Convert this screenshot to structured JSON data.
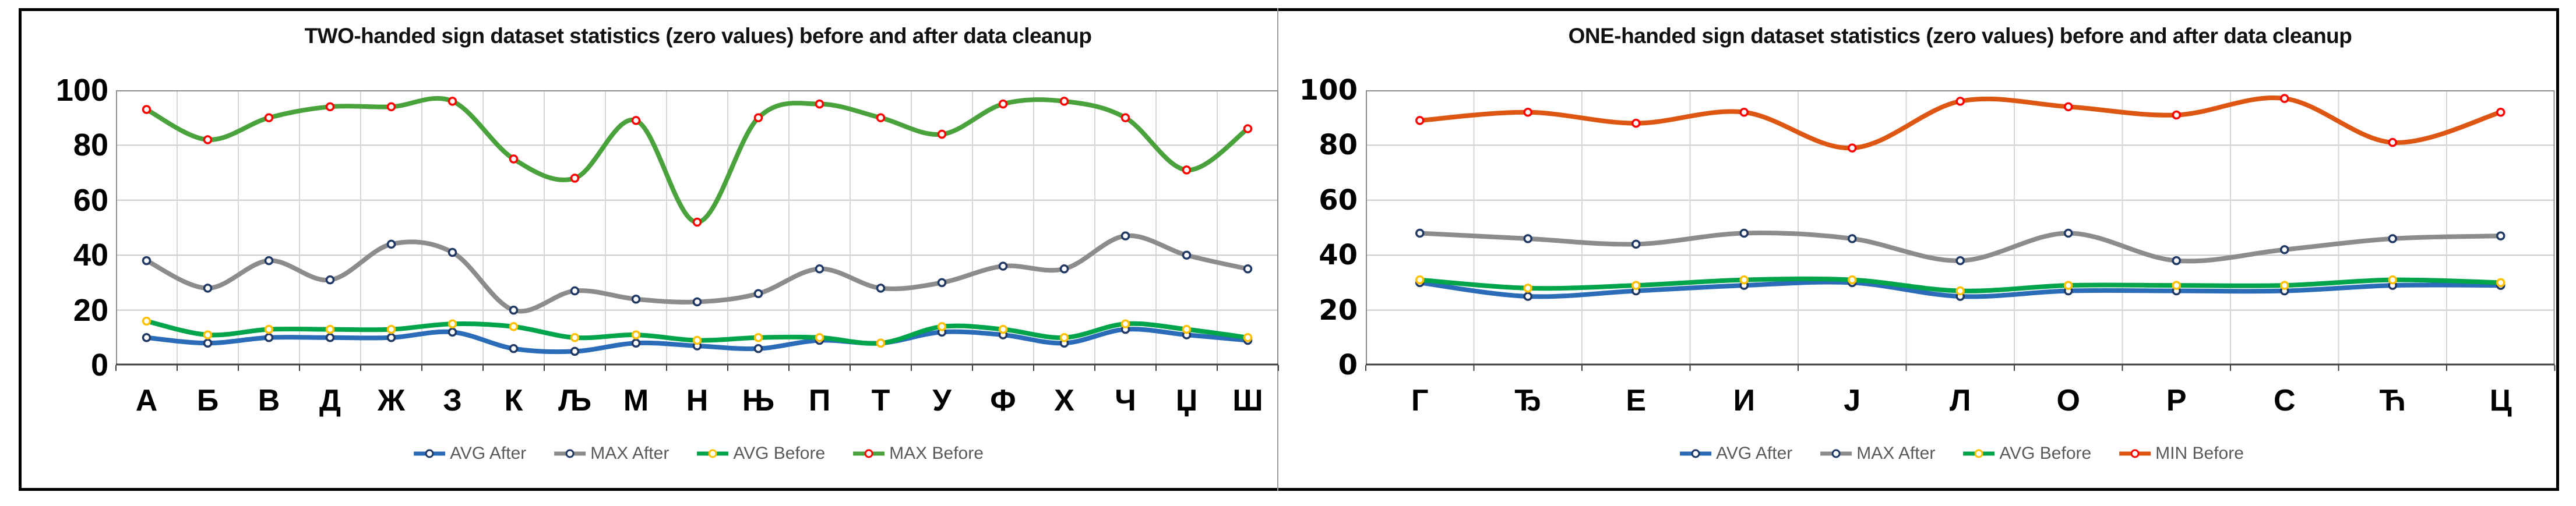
{
  "page": {
    "background": "#ffffff",
    "outer_border_color": "#000000",
    "divider_color": "#9a9a9a",
    "gridline_color": "#c9c9c9",
    "vertical_gridline_color": "#d6d6d6",
    "plot_border_color": "#8c8c8c",
    "axis_line_color": "#3f3f3f",
    "legend_text_color": "#595959"
  },
  "chart_data": [
    {
      "type": "line",
      "id": "two-handed",
      "title": "TWO-handed sign dataset statistics (zero values) before and after data cleanup",
      "xlabel": "",
      "ylabel": "",
      "ylim": [
        0,
        100
      ],
      "y_ticks": [
        100,
        80,
        60,
        40,
        20,
        0
      ],
      "grid": true,
      "legend_position": "bottom",
      "smooth_lines": true,
      "categories": [
        "А",
        "Б",
        "В",
        "Д",
        "Ж",
        "З",
        "К",
        "Љ",
        "М",
        "Н",
        "Њ",
        "П",
        "Т",
        "У",
        "Ф",
        "Х",
        "Ч",
        "Џ",
        "Ш"
      ],
      "series": [
        {
          "name": "AVG After",
          "color": "#2b6cb8",
          "marker_color": "#1f3864",
          "values": [
            10,
            8,
            10,
            10,
            10,
            12,
            6,
            5,
            8,
            7,
            6,
            9,
            8,
            12,
            11,
            8,
            13,
            11,
            9
          ]
        },
        {
          "name": "MAX After",
          "color": "#8c8c8c",
          "marker_color": "#1f3864",
          "values": [
            38,
            28,
            38,
            31,
            44,
            41,
            20,
            27,
            24,
            23,
            26,
            35,
            28,
            30,
            36,
            35,
            47,
            40,
            35
          ]
        },
        {
          "name": "AVG Before",
          "color": "#00a44a",
          "marker_color": "#ffc000",
          "values": [
            16,
            11,
            13,
            13,
            13,
            15,
            14,
            10,
            11,
            9,
            10,
            10,
            8,
            14,
            13,
            10,
            15,
            13,
            10
          ]
        },
        {
          "name": "MAX Before",
          "color": "#4aa23c",
          "marker_color": "#ff0000",
          "values": [
            93,
            82,
            90,
            94,
            94,
            96,
            75,
            68,
            89,
            52,
            90,
            95,
            90,
            84,
            95,
            96,
            90,
            71,
            86
          ]
        }
      ]
    },
    {
      "type": "line",
      "id": "one-handed",
      "title": "ONE-handed sign dataset statistics (zero values) before and after data cleanup",
      "xlabel": "",
      "ylabel": "",
      "ylim": [
        0,
        100
      ],
      "y_ticks": [
        100,
        80,
        60,
        40,
        20,
        0
      ],
      "grid": true,
      "legend_position": "bottom",
      "smooth_lines": true,
      "categories": [
        "Г",
        "Ђ",
        "Е",
        "И",
        "Ј",
        "Л",
        "О",
        "Р",
        "С",
        "Ћ",
        "Ц"
      ],
      "series": [
        {
          "name": "AVG After",
          "color": "#2b6cb8",
          "marker_color": "#1f3864",
          "values": [
            30,
            25,
            27,
            29,
            30,
            25,
            27,
            27,
            27,
            29,
            29
          ]
        },
        {
          "name": "MAX After",
          "color": "#8c8c8c",
          "marker_color": "#1f3864",
          "values": [
            48,
            46,
            44,
            48,
            46,
            38,
            48,
            38,
            42,
            46,
            47
          ]
        },
        {
          "name": "AVG Before",
          "color": "#00a44a",
          "marker_color": "#ffc000",
          "values": [
            31,
            28,
            29,
            31,
            31,
            27,
            29,
            29,
            29,
            31,
            30
          ]
        },
        {
          "name": "MIN Before",
          "color": "#dd5713",
          "marker_color": "#ff0000",
          "values": [
            89,
            92,
            88,
            92,
            79,
            96,
            94,
            91,
            97,
            81,
            92
          ]
        }
      ]
    }
  ]
}
